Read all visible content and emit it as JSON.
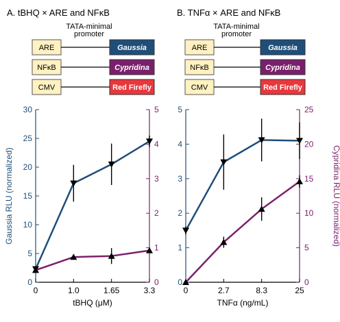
{
  "colors": {
    "blue": "#1f4e79",
    "purple": "#7a1f6b",
    "marker": "#000000",
    "box_fill": "#fff1c1",
    "box_stroke": "#555555",
    "gaussia_fill": "#1f4e79",
    "cypridina_fill": "#7a1f6b",
    "firefly_fill": "#e8383d"
  },
  "panels": [
    {
      "title": "A. tBHQ × ARE and NFκB",
      "promoter_label_1": "TATA-minimal",
      "promoter_label_2": "promoter",
      "constructs": [
        {
          "left": "ARE",
          "right": "Gaussia",
          "right_color": "#1f4e79",
          "right_italic": true
        },
        {
          "left": "NFκB",
          "right": "Cypridina",
          "right_color": "#7a1f6b",
          "right_italic": true
        },
        {
          "left": "CMV",
          "right": "Red Firefly",
          "right_color": "#e8383d",
          "right_italic": false
        }
      ]
    },
    {
      "title": "B. TNFα × ARE and NFκB",
      "promoter_label_1": "TATA-minimal",
      "promoter_label_2": "promoter",
      "constructs": [
        {
          "left": "ARE",
          "right": "Gaussia",
          "right_color": "#1f4e79",
          "right_italic": true
        },
        {
          "left": "NFκB",
          "right": "Cypridina",
          "right_color": "#7a1f6b",
          "right_italic": true
        },
        {
          "left": "CMV",
          "right": "Red Firefly",
          "right_color": "#e8383d",
          "right_italic": false
        }
      ]
    }
  ],
  "chart_data": [
    {
      "type": "line",
      "xlabel": "tBHQ (μM)",
      "categories": [
        "0",
        "1.0",
        "1.65",
        "3.3"
      ],
      "y_left": {
        "label": "Gaussia RLU (normalized)",
        "ylim": [
          0,
          30
        ],
        "ticks": [
          0,
          5,
          10,
          15,
          20,
          25,
          30
        ],
        "color": "#1f4e79"
      },
      "y_right": {
        "label": "",
        "ylim": [
          0,
          5
        ],
        "ticks": [
          0,
          1,
          2,
          3,
          4,
          5
        ],
        "color": "#7a1f6b"
      },
      "series": [
        {
          "axis": "left",
          "color": "#1f4e79",
          "marker": "down-triangle",
          "values": [
            2.3,
            17.2,
            20.5,
            24.5
          ],
          "errors": [
            0.5,
            3.2,
            3.6,
            1.0
          ]
        },
        {
          "axis": "right",
          "color": "#7a1f6b",
          "marker": "up-triangle",
          "values": [
            0.35,
            0.73,
            0.76,
            0.92
          ],
          "errors": [
            0.08,
            0.05,
            0.23,
            0.05
          ]
        }
      ],
      "grid": false
    },
    {
      "type": "line",
      "xlabel": "TNFα (ng/mL)",
      "categories": [
        "0",
        "2.7",
        "8.3",
        "25"
      ],
      "y_left": {
        "label": "",
        "ylim": [
          0,
          5
        ],
        "ticks": [
          0,
          1,
          2,
          3,
          4,
          5
        ],
        "color": "#1f4e79"
      },
      "y_right": {
        "label": "Cypridina RLU (normalized)",
        "ylim": [
          0,
          25
        ],
        "ticks": [
          0,
          5,
          10,
          15,
          20,
          25
        ],
        "color": "#7a1f6b"
      },
      "series": [
        {
          "axis": "left",
          "color": "#1f4e79",
          "marker": "down-triangle",
          "values": [
            1.5,
            3.48,
            4.12,
            4.1
          ],
          "errors": [
            0.12,
            0.8,
            0.62,
            0.53
          ]
        },
        {
          "axis": "right",
          "color": "#7a1f6b",
          "marker": "up-triangle",
          "values": [
            0.0,
            5.8,
            10.6,
            14.6
          ],
          "errors": [
            0.1,
            0.8,
            1.7,
            0.9
          ]
        }
      ],
      "grid": false
    }
  ]
}
